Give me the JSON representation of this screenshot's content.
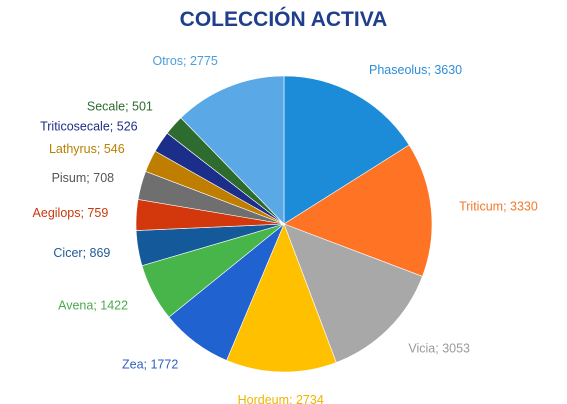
{
  "chart_data": {
    "type": "pie",
    "title": "COLECCIÓN ACTIVA",
    "title_color": "#1F3E8C",
    "start_angle_deg": 0,
    "direction": "clockwise",
    "legend": "none",
    "slices": [
      {
        "name": "Phaseolus",
        "value": 3630,
        "label": "Phaseolus; 3630",
        "color": "#1C8CD8",
        "label_color": "#2E8DD6"
      },
      {
        "name": "Triticum",
        "value": 3330,
        "label": "Triticum; 3330",
        "color": "#FF7424",
        "label_color": "#F07A2A"
      },
      {
        "name": "Vicia",
        "value": 3053,
        "label": "Vicia; 3053",
        "color": "#A8A8A8",
        "label_color": "#9A9A9A"
      },
      {
        "name": "Hordeum",
        "value": 2734,
        "label": "Hordeum; 2734",
        "color": "#FFC000",
        "label_color": "#F0B400"
      },
      {
        "name": "Zea",
        "value": 1772,
        "label": "Zea; 1772",
        "color": "#1F62D0",
        "label_color": "#2E5FBF"
      },
      {
        "name": "Avena",
        "value": 1422,
        "label": "Avena; 1422",
        "color": "#47B54A",
        "label_color": "#4DA84D"
      },
      {
        "name": "Cicer",
        "value": 869,
        "label": "Cicer; 869",
        "color": "#145A9A",
        "label_color": "#1E5C95"
      },
      {
        "name": "Aegilops",
        "value": 759,
        "label": "Aegilops; 759",
        "color": "#D2380C",
        "label_color": "#C8380A"
      },
      {
        "name": "Pisum",
        "value": 708,
        "label": "Pisum; 708",
        "color": "#6F6F6F",
        "label_color": "#555555"
      },
      {
        "name": "Lathyrus",
        "value": 546,
        "label": "Lathyrus; 546",
        "color": "#C07E00",
        "label_color": "#B88200"
      },
      {
        "name": "Triticosecale",
        "value": 526,
        "label": "Triticosecale; 526",
        "color": "#1A2E8A",
        "label_color": "#1E2F85"
      },
      {
        "name": "Secale",
        "value": 501,
        "label": "Secale; 501",
        "color": "#2E6B2E",
        "label_color": "#2F6A2F"
      },
      {
        "name": "Otros",
        "value": 2775,
        "label": "Otros; 2775",
        "color": "#5AA9E6",
        "label_color": "#4C9EDB"
      }
    ]
  }
}
